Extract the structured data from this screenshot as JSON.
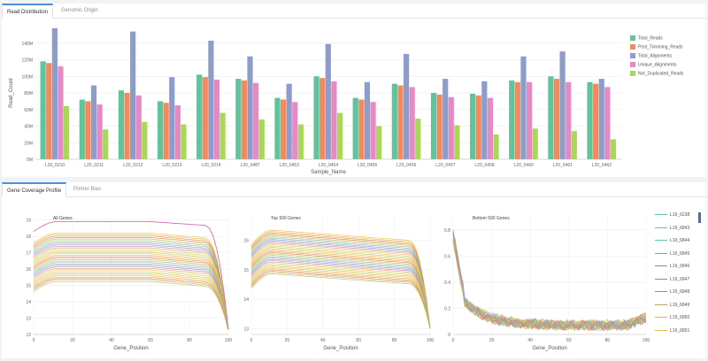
{
  "top_tabs": [
    {
      "label": "Read Distribution",
      "active": true
    },
    {
      "label": "Genomic Origin",
      "active": false
    }
  ],
  "bottom_tabs": [
    {
      "label": "Gene Coverage Profile",
      "active": true
    },
    {
      "label": "Primer Bias",
      "active": false
    }
  ],
  "colors": {
    "Total_Reads": "#5fc39c",
    "Post_Trimming_Reads": "#f38a5d",
    "Total_Alignments": "#8d9ccb",
    "Unique_Alignments": "#e58ac3",
    "Not_Duplicated_Reads": "#a8d858"
  },
  "chart_data": [
    {
      "type": "bar",
      "title": "",
      "xlabel": "Sample_Name",
      "ylabel": "Read_Count",
      "ylim": [
        0,
        160
      ],
      "yticks": [
        "0M",
        "20M",
        "40M",
        "60M",
        "80M",
        "100M",
        "120M",
        "140M"
      ],
      "grid": true,
      "legend_position": "right",
      "categories": [
        "L20_0210",
        "L20_0211",
        "L20_0212",
        "L20_0213",
        "L20_0214",
        "L20_0487",
        "L20_0453",
        "L20_0454",
        "L20_0455",
        "L20_0456",
        "L20_0457",
        "L20_0458",
        "L20_0460",
        "L20_0461",
        "L20_0462"
      ],
      "series": [
        {
          "name": "Total_Reads",
          "values": [
            118,
            72,
            83,
            70,
            102,
            97,
            74,
            100,
            74,
            91,
            80,
            79,
            95,
            100,
            93
          ]
        },
        {
          "name": "Post_Trimming_Reads",
          "values": [
            116,
            70,
            80,
            68,
            99,
            95,
            72,
            98,
            72,
            89,
            78,
            77,
            93,
            97,
            91
          ]
        },
        {
          "name": "Total_Alignments",
          "values": [
            158,
            89,
            154,
            99,
            143,
            124,
            91,
            139,
            93,
            127,
            97,
            94,
            124,
            130,
            97
          ]
        },
        {
          "name": "Unique_Alignments",
          "values": [
            112,
            66,
            77,
            65,
            96,
            92,
            69,
            94,
            69,
            87,
            75,
            74,
            93,
            93,
            87
          ]
        },
        {
          "name": "Not_Duplicated_Reads",
          "values": [
            64,
            36,
            45,
            42,
            56,
            48,
            42,
            56,
            40,
            49,
            41,
            30,
            37,
            34,
            24
          ]
        }
      ]
    },
    {
      "type": "line",
      "title": "All Genes",
      "xlabel": "Gene_Position",
      "ylabel": "",
      "xlim": [
        0,
        100
      ],
      "ylim": [
        12,
        19.2
      ],
      "xticks": [
        "0",
        "20",
        "40",
        "60",
        "80",
        "100"
      ],
      "yticks": [
        "12",
        "13",
        "14",
        "15",
        "16",
        "17",
        "18",
        "19"
      ],
      "grid": true
    },
    {
      "type": "line",
      "title": "Top 500 Genes",
      "xlabel": "Gene_Position",
      "ylabel": "",
      "xlim": [
        0,
        100
      ],
      "ylim": [
        12.8,
        16.8
      ],
      "xticks": [
        "0",
        "20",
        "40",
        "60",
        "80",
        "100"
      ],
      "yticks": [
        "13",
        "14",
        "15",
        "16"
      ],
      "grid": true
    },
    {
      "type": "line",
      "title": "Bottom 500 Genes",
      "xlabel": "Gene_Position",
      "ylabel": "",
      "xlim": [
        0,
        100
      ],
      "ylim": [
        0,
        0.9
      ],
      "xticks": [
        "0",
        "20",
        "40",
        "60",
        "80",
        "100"
      ],
      "yticks": [
        "0",
        "0.2",
        "0.4",
        "0.6",
        "0.8"
      ],
      "grid": true
    }
  ],
  "line_legend": [
    {
      "name": "L19_6238",
      "color": "#5fc39c"
    },
    {
      "name": "L19_6843",
      "color": "#5fc39c"
    },
    {
      "name": "L19_6844",
      "color": "#5fc39c"
    },
    {
      "name": "L19_6845",
      "color": "#72b68e"
    },
    {
      "name": "L19_6846",
      "color": "#8f8f7e"
    },
    {
      "name": "L19_6847",
      "color": "#9a8870"
    },
    {
      "name": "L19_6848",
      "color": "#a98a66"
    },
    {
      "name": "L19_6849",
      "color": "#b8a85e"
    },
    {
      "name": "L19_6850",
      "color": "#cdb94e"
    },
    {
      "name": "L19_6851",
      "color": "#e0c24c"
    }
  ]
}
